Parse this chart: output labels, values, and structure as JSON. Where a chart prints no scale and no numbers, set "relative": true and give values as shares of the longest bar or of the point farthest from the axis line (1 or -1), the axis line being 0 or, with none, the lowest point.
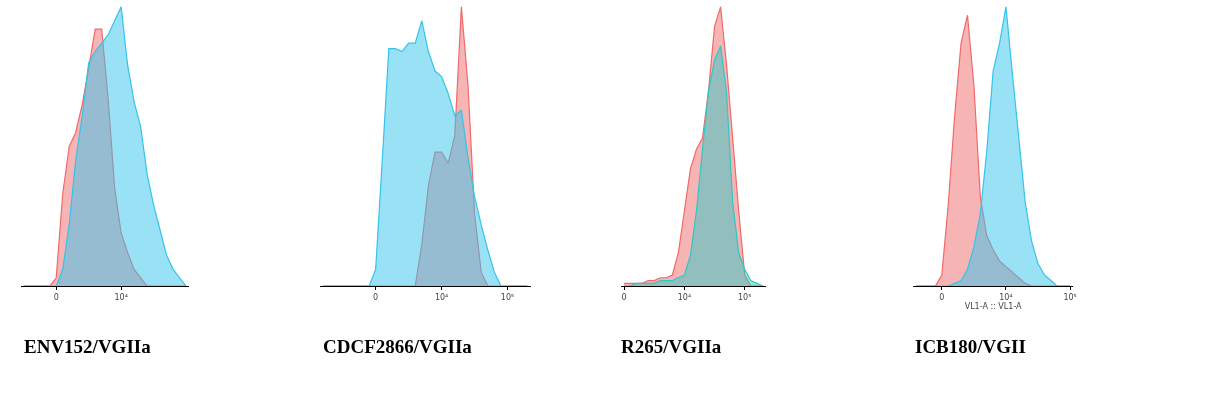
{
  "chart_data": [
    {
      "type": "area",
      "relative": true,
      "categories": [
        null,
        null,
        null,
        null,
        null,
        "0",
        null,
        null,
        null,
        null,
        null,
        null,
        null,
        null,
        null,
        "10⁴",
        null,
        null,
        null,
        null,
        null,
        null,
        null,
        null,
        null,
        null
      ],
      "annotations": [
        "ENV152/VGIIa"
      ],
      "series": [
        {
          "color": "#f06a6a",
          "values": [
            0,
            0,
            0,
            0,
            0,
            0.03,
            0.33,
            0.5,
            0.55,
            0.65,
            0.78,
            0.92,
            0.92,
            0.67,
            0.35,
            0.19,
            0.12,
            0.06,
            0.03,
            0,
            0,
            0,
            0,
            0,
            0,
            0
          ]
        },
        {
          "color": "#33c3ec",
          "values": [
            0,
            0,
            0,
            0,
            0,
            0,
            0.06,
            0.22,
            0.45,
            0.61,
            0.8,
            0.84,
            0.87,
            0.9,
            0.95,
            1.0,
            0.79,
            0.66,
            0.57,
            0.4,
            0.29,
            0.2,
            0.11,
            0.06,
            0.03,
            0
          ]
        }
      ]
    },
    {
      "type": "area",
      "relative": true,
      "categories": [
        null,
        null,
        null,
        null,
        null,
        null,
        null,
        null,
        "0",
        null,
        null,
        null,
        null,
        null,
        null,
        null,
        null,
        null,
        "10⁴",
        null,
        null,
        null,
        null,
        null,
        null,
        null,
        null,
        null,
        "10⁵",
        null,
        null,
        null
      ],
      "annotations": [
        "CDCF2866/VGIIa"
      ],
      "series": [
        {
          "color": "#f06a6a",
          "values": [
            0,
            0,
            0,
            0,
            0,
            0,
            0,
            0,
            0,
            0,
            0,
            0,
            0,
            0,
            0,
            0.15,
            0.36,
            0.48,
            0.48,
            0.44,
            0.54,
            1.0,
            0.72,
            0.26,
            0.05,
            0,
            0,
            0,
            0,
            0,
            0,
            0
          ]
        },
        {
          "color": "#33c3ec",
          "values": [
            0,
            0,
            0,
            0,
            0,
            0,
            0,
            0,
            0.06,
            0.45,
            0.85,
            0.85,
            0.84,
            0.87,
            0.87,
            0.95,
            0.84,
            0.77,
            0.75,
            0.69,
            0.61,
            0.63,
            0.46,
            0.32,
            0.22,
            0.13,
            0.05,
            0,
            0,
            0,
            0,
            0
          ]
        }
      ]
    },
    {
      "type": "area",
      "relative": true,
      "categories": [
        "0",
        null,
        null,
        null,
        null,
        null,
        null,
        null,
        null,
        null,
        "10⁴",
        null,
        null,
        null,
        null,
        null,
        null,
        null,
        null,
        null,
        "10⁵",
        null,
        null,
        null
      ],
      "annotations": [
        "R265/VGIIa"
      ],
      "series": [
        {
          "color": "#f06a6a",
          "values": [
            0.01,
            0.01,
            0.01,
            0.01,
            0.02,
            0.02,
            0.03,
            0.03,
            0.04,
            0.12,
            0.27,
            0.42,
            0.49,
            0.53,
            0.7,
            0.93,
            1.0,
            0.79,
            0.53,
            0.27,
            0.04,
            0,
            0,
            0
          ]
        },
        {
          "color": "#2ec8c8",
          "values": [
            0,
            0,
            0.01,
            0.01,
            0.01,
            0.01,
            0.02,
            0.02,
            0.02,
            0.03,
            0.04,
            0.11,
            0.27,
            0.49,
            0.7,
            0.81,
            0.86,
            0.69,
            0.3,
            0.12,
            0.06,
            0.02,
            0.01,
            0
          ]
        }
      ]
    },
    {
      "type": "area",
      "relative": true,
      "categories": [
        null,
        null,
        null,
        null,
        "0",
        null,
        null,
        null,
        null,
        null,
        null,
        null,
        null,
        null,
        "10⁴",
        null,
        null,
        null,
        null,
        null,
        null,
        null,
        null,
        null,
        "10⁵"
      ],
      "xlabel": "VL1-A :: VL1-A",
      "annotations": [
        "ICB180/VGII"
      ],
      "series": [
        {
          "color": "#f06a6a",
          "values": [
            0,
            0,
            0,
            0,
            0.04,
            0.29,
            0.61,
            0.87,
            0.97,
            0.72,
            0.32,
            0.18,
            0.13,
            0.09,
            0.07,
            0.05,
            0.03,
            0.01,
            0,
            0,
            0,
            0,
            0,
            0,
            0
          ]
        },
        {
          "color": "#33c3ec",
          "values": [
            0,
            0,
            0,
            0,
            0,
            0,
            0.01,
            0.02,
            0.06,
            0.14,
            0.26,
            0.48,
            0.77,
            0.87,
            1.0,
            0.76,
            0.53,
            0.3,
            0.16,
            0.08,
            0.04,
            0.02,
            0,
            0,
            0
          ]
        }
      ]
    }
  ]
}
